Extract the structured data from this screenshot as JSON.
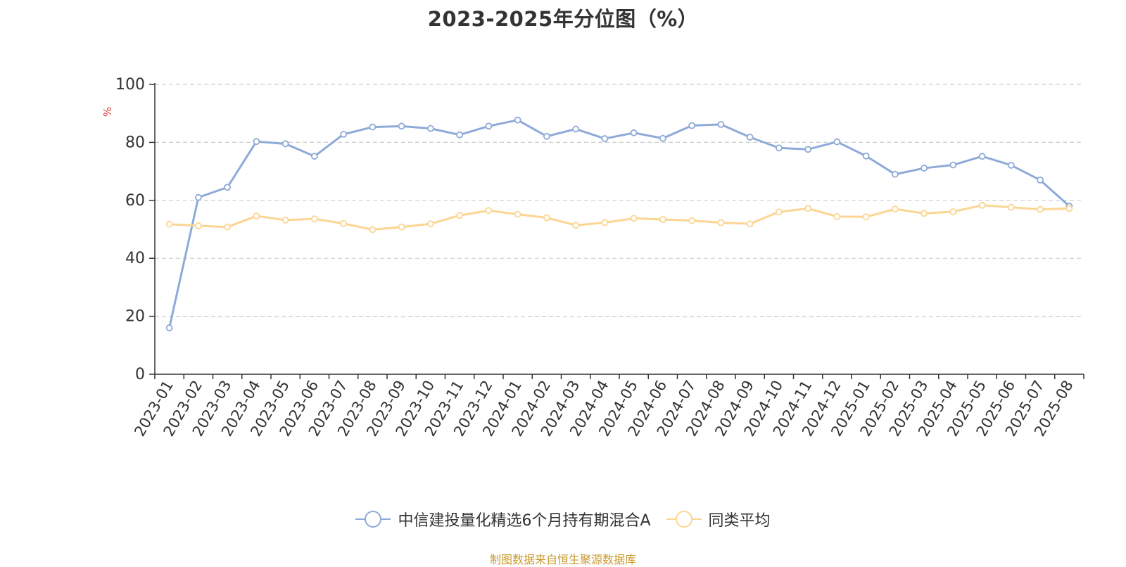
{
  "chart_data": {
    "type": "line",
    "title": "2023-2025年分位图（%）",
    "ylabel": "%",
    "ylim": [
      0,
      100
    ],
    "yticks": [
      0,
      20,
      40,
      60,
      80,
      100
    ],
    "grid": true,
    "legend_position": "bottom",
    "categories": [
      "2023-01",
      "2023-02",
      "2023-03",
      "2023-04",
      "2023-05",
      "2023-06",
      "2023-07",
      "2023-08",
      "2023-09",
      "2023-10",
      "2023-11",
      "2023-12",
      "2024-01",
      "2024-02",
      "2024-03",
      "2024-04",
      "2024-05",
      "2024-06",
      "2024-07",
      "2024-08",
      "2024-09",
      "2024-10",
      "2024-11",
      "2024-12",
      "2025-01",
      "2025-02",
      "2025-03",
      "2025-04",
      "2025-05",
      "2025-06",
      "2025-07",
      "2025-08"
    ],
    "series": [
      {
        "name": "中信建投量化精选6个月持有期混合A",
        "color": "#8eaad8",
        "values": [
          16,
          61,
          64.5,
          80.3,
          79.5,
          75.2,
          82.8,
          85.3,
          85.6,
          84.8,
          82.6,
          85.6,
          87.7,
          82.1,
          84.6,
          81.3,
          83.3,
          81.4,
          85.8,
          86.2,
          81.8,
          78.1,
          77.6,
          80.2,
          75.3,
          69,
          71.1,
          72.2,
          75.2,
          72.1,
          67,
          58
        ]
      },
      {
        "name": "同类平均",
        "color": "#fcd593",
        "values": [
          51.8,
          51.2,
          50.8,
          54.6,
          53.2,
          53.6,
          52,
          49.9,
          50.8,
          51.9,
          54.8,
          56.5,
          55.2,
          54,
          51.4,
          52.3,
          53.8,
          53.4,
          53,
          52.3,
          51.9,
          56,
          57.2,
          54.4,
          54.3,
          57,
          55.5,
          56.1,
          58.3,
          57.6,
          56.9,
          57.2
        ]
      }
    ]
  },
  "source": "制图数据来自恒生聚源数据库",
  "colors": {
    "title": "#333333",
    "axis": "#333333",
    "grid": "#cccccc",
    "unit": "#e53935",
    "source": "#c99a2e"
  }
}
